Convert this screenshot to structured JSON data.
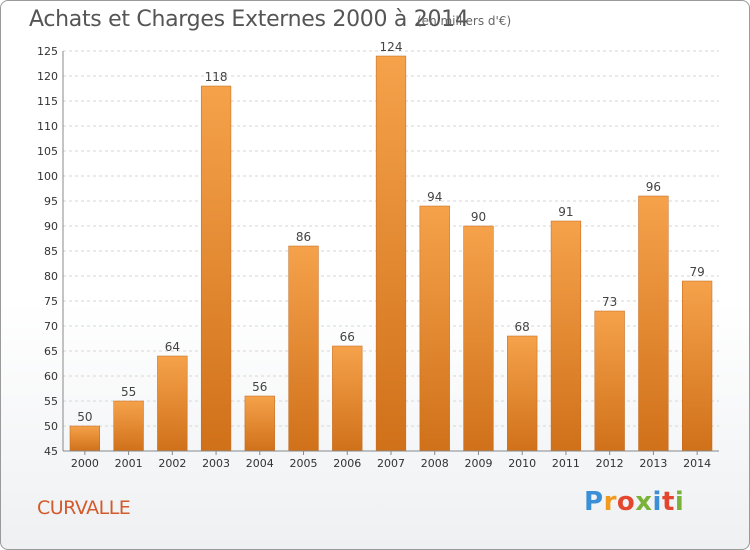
{
  "title": "Achats et Charges Externes 2000 à 2014",
  "subtitle": "(en milliers d'€)",
  "city": "CURVALLE",
  "logo": {
    "text": "Proxiti",
    "letters": [
      "P",
      "r",
      "o",
      "x",
      "i",
      "t",
      "i"
    ]
  },
  "colors": {
    "bar_top": "#f5a24b",
    "bar_bottom": "#d0711a",
    "title": "#555555",
    "city": "#d35a2b"
  },
  "chart_data": {
    "type": "bar",
    "title": "Achats et Charges Externes 2000 à 2014",
    "categories": [
      "2000",
      "2001",
      "2002",
      "2003",
      "2004",
      "2005",
      "2006",
      "2007",
      "2008",
      "2009",
      "2010",
      "2011",
      "2012",
      "2013",
      "2014"
    ],
    "values": [
      50,
      55,
      64,
      118,
      56,
      86,
      66,
      124,
      94,
      90,
      68,
      91,
      73,
      96,
      79
    ],
    "ylim": [
      45,
      125
    ],
    "yticks": [
      45,
      50,
      55,
      60,
      65,
      70,
      75,
      80,
      85,
      90,
      95,
      100,
      105,
      110,
      115,
      120,
      125
    ],
    "grid": true,
    "xlabel": "",
    "ylabel": ""
  }
}
